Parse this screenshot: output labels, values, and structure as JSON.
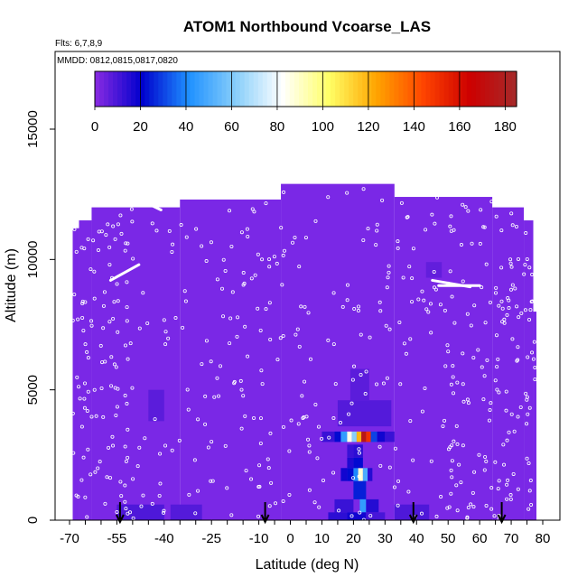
{
  "chart_data": {
    "type": "heatmap",
    "title": "ATOM1 Northbound Vcoarse_LAS",
    "flights_note": "Flts: 6,7,8,9",
    "dates_note": "MMDD: 0812,0815,0817,0820",
    "xlabel": "Latitude (deg N)",
    "ylabel": "Altitude (m)",
    "xlim": [
      -70,
      80
    ],
    "ylim": [
      0,
      17500
    ],
    "x_ticks_labeled": [
      -70,
      -55,
      -40,
      -25,
      -10,
      0,
      10,
      20,
      30,
      40,
      50,
      60,
      70,
      80
    ],
    "x_ticks_minor_step": 5,
    "y_ticks": [
      0,
      5000,
      10000,
      15000
    ],
    "colorbar": {
      "range": [
        0,
        185
      ],
      "ticks": [
        0,
        20,
        40,
        60,
        80,
        100,
        120,
        140,
        160,
        180
      ],
      "labels": [
        "0",
        "20",
        "40",
        "60",
        "80",
        "100",
        "120",
        "140",
        "160",
        "180"
      ],
      "stops": [
        "#8a2be2",
        "#0000cd",
        "#1e90ff",
        "#87cefa",
        "#ffffff",
        "#ffff66",
        "#ffa500",
        "#ff4500",
        "#cd0000",
        "#a52a2a"
      ]
    },
    "background_value": 3,
    "background_color": "#7a28e6",
    "ceiling": [
      {
        "lat": [
          -69,
          -67
        ],
        "alt": 11200
      },
      {
        "lat": [
          -67,
          -63
        ],
        "alt": 11500
      },
      {
        "lat": [
          -63,
          -35
        ],
        "alt": 12000
      },
      {
        "lat": [
          -35,
          -3
        ],
        "alt": 12300
      },
      {
        "lat": [
          -3,
          33
        ],
        "alt": 12900
      },
      {
        "lat": [
          33,
          64
        ],
        "alt": 12400
      },
      {
        "lat": [
          64,
          74
        ],
        "alt": 12000
      },
      {
        "lat": [
          74,
          77
        ],
        "alt": 11500
      },
      {
        "lat": [
          77,
          78
        ],
        "alt": 8000
      }
    ],
    "cells": [
      {
        "lat": [
          14,
          16
        ],
        "alt": [
          3000,
          3400
        ],
        "value": 22
      },
      {
        "lat": [
          16,
          18
        ],
        "alt": [
          3000,
          3400
        ],
        "value": 45
      },
      {
        "lat": [
          18,
          19.5
        ],
        "alt": [
          3000,
          3400
        ],
        "value": 85
      },
      {
        "lat": [
          19.5,
          21
        ],
        "alt": [
          3000,
          3400
        ],
        "value": 62
      },
      {
        "lat": [
          21,
          22.5
        ],
        "alt": [
          3000,
          3400
        ],
        "value": 120
      },
      {
        "lat": [
          22.5,
          24
        ],
        "alt": [
          3000,
          3400
        ],
        "value": 175
      },
      {
        "lat": [
          24,
          25.5
        ],
        "alt": [
          3000,
          3400
        ],
        "value": 150
      },
      {
        "lat": [
          25.5,
          27.5
        ],
        "alt": [
          3000,
          3400
        ],
        "value": 30
      },
      {
        "lat": [
          27.5,
          30
        ],
        "alt": [
          3000,
          3400
        ],
        "value": 18
      },
      {
        "lat": [
          10,
          14
        ],
        "alt": [
          3000,
          3400
        ],
        "value": 12
      },
      {
        "lat": [
          30,
          33
        ],
        "alt": [
          3000,
          3400
        ],
        "value": 12
      },
      {
        "lat": [
          16,
          18
        ],
        "alt": [
          1500,
          2000
        ],
        "value": 18
      },
      {
        "lat": [
          18,
          20
        ],
        "alt": [
          1500,
          2000
        ],
        "value": 22
      },
      {
        "lat": [
          20,
          21.5
        ],
        "alt": [
          1500,
          2000
        ],
        "value": 40
      },
      {
        "lat": [
          21.5,
          23
        ],
        "alt": [
          1500,
          2000
        ],
        "value": 88
      },
      {
        "lat": [
          23,
          24.5
        ],
        "alt": [
          1500,
          2000
        ],
        "value": 50
      },
      {
        "lat": [
          24.5,
          26
        ],
        "alt": [
          1500,
          2000
        ],
        "value": 15
      },
      {
        "lat": [
          18,
          20
        ],
        "alt": [
          2000,
          2400
        ],
        "value": 16
      },
      {
        "lat": [
          20,
          23
        ],
        "alt": [
          2000,
          2400
        ],
        "value": 22
      },
      {
        "lat": [
          18,
          20
        ],
        "alt": [
          2400,
          2900
        ],
        "value": 12
      },
      {
        "lat": [
          20,
          23
        ],
        "alt": [
          2400,
          2900
        ],
        "value": 14
      },
      {
        "lat": [
          20,
          24
        ],
        "alt": [
          800,
          1500
        ],
        "value": 25
      },
      {
        "lat": [
          22,
          24
        ],
        "alt": [
          300,
          800
        ],
        "value": 45
      },
      {
        "lat": [
          14,
          20
        ],
        "alt": [
          300,
          800
        ],
        "value": 12
      },
      {
        "lat": [
          24,
          28
        ],
        "alt": [
          300,
          800
        ],
        "value": 15
      },
      {
        "lat": [
          12,
          18
        ],
        "alt": [
          0,
          300
        ],
        "value": 14
      },
      {
        "lat": [
          18,
          24
        ],
        "alt": [
          0,
          300
        ],
        "value": 18
      },
      {
        "lat": [
          24,
          30
        ],
        "alt": [
          0,
          300
        ],
        "value": 10
      },
      {
        "lat": [
          -55,
          -40
        ],
        "alt": [
          0,
          600
        ],
        "value": 9
      },
      {
        "lat": [
          -38,
          -28
        ],
        "alt": [
          0,
          600
        ],
        "value": 8
      },
      {
        "lat": [
          33,
          44
        ],
        "alt": [
          0,
          600
        ],
        "value": 9
      },
      {
        "lat": [
          -45,
          -40
        ],
        "alt": [
          3800,
          5000
        ],
        "value": 7
      },
      {
        "lat": [
          15,
          32
        ],
        "alt": [
          3600,
          4600
        ],
        "value": 8
      },
      {
        "lat": [
          19,
          25
        ],
        "alt": [
          4600,
          5800
        ],
        "value": 7
      },
      {
        "lat": [
          43,
          48
        ],
        "alt": [
          9300,
          9900
        ],
        "value": 6
      }
    ],
    "flight_tracks": [
      {
        "lat": [
          -57,
          -48
        ],
        "alt": [
          9200,
          9800
        ]
      },
      {
        "lat": [
          45,
          57
        ],
        "alt": [
          9200,
          8950
        ]
      },
      {
        "lat": [
          -53,
          -41
        ],
        "alt": [
          12600,
          11900
        ]
      },
      {
        "lat": [
          47,
          60
        ],
        "alt": [
          9000,
          9000
        ]
      }
    ],
    "profile_markers_lat": [
      -54,
      -8,
      39,
      67
    ]
  }
}
